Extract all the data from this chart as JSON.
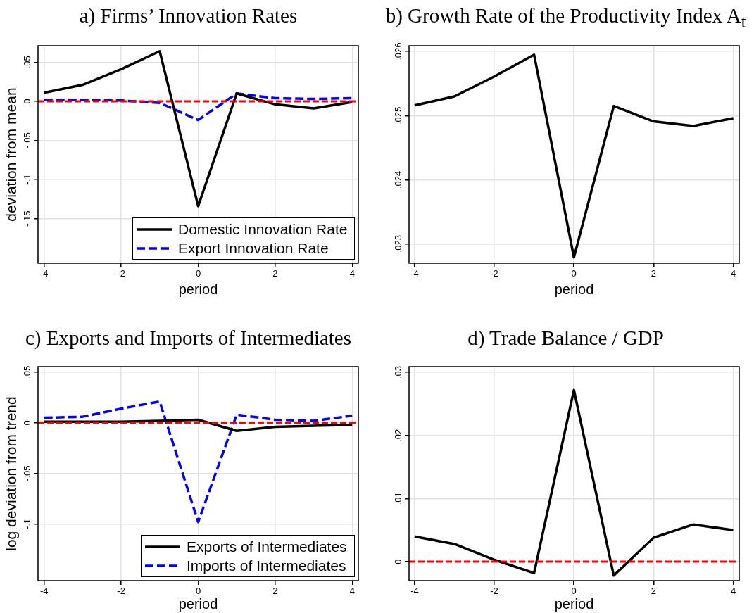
{
  "chart_data": [
    {
      "type": "line",
      "title": "a) Firms’ Innovation Rates",
      "xlabel": "period",
      "ylabel": "deviation from mean",
      "x": [
        -4,
        -3,
        -2,
        -1,
        0,
        1,
        2,
        3,
        4
      ],
      "series": [
        {
          "name": "Domestic Innovation Rate",
          "color": "#000000",
          "line_style": "solid",
          "values": [
            0.011,
            0.021,
            0.041,
            0.064,
            -0.134,
            0.01,
            -0.004,
            -0.009,
            -0.001
          ]
        },
        {
          "name": "Export Innovation Rate",
          "color": "#0000ff",
          "line_style": "dashed",
          "values": [
            0.002,
            0.002,
            0.001,
            -0.002,
            -0.024,
            0.01,
            0.004,
            0.003,
            0.004
          ]
        }
      ],
      "xlim": [
        -4.16,
        4.16
      ],
      "ylim": [
        -0.207,
        0.071
      ],
      "xticks": [
        -4,
        -2,
        0,
        2,
        4
      ],
      "yticks": [
        {
          "value": -0.15,
          "label": "-.15"
        },
        {
          "value": -0.1,
          "label": "-.1"
        },
        {
          "value": -0.05,
          "label": "-.05"
        },
        {
          "value": 0,
          "label": "0"
        },
        {
          "value": 0.05,
          "label": ".05"
        }
      ],
      "grid": true,
      "legend": "bottom right",
      "marker": "none",
      "ref_lines": [
        {
          "axis": "y",
          "value": 0,
          "color": "#ff0000",
          "line_style": "dashed"
        }
      ]
    },
    {
      "type": "line",
      "title": "b) Growth Rate of the Productivity Index A$_{t}$",
      "xlabel": "period",
      "x": [
        -4,
        -3,
        -2,
        -1,
        0,
        1,
        2,
        3,
        4
      ],
      "series": [
        {
          "color": "#000000",
          "line_style": "solid",
          "values": [
            0.02516,
            0.0253,
            0.02561,
            0.02595,
            0.02279,
            0.02515,
            0.02491,
            0.02484,
            0.02496
          ]
        }
      ],
      "xlim": [
        -4.14,
        4.15
      ],
      "ylim": [
        0.0227,
        0.02609
      ],
      "xticks": [
        -4,
        -2,
        0,
        2,
        4
      ],
      "yticks": [
        {
          "value": 0.023,
          "label": ".023"
        },
        {
          "value": 0.024,
          "label": ".024"
        },
        {
          "value": 0.025,
          "label": ".025"
        },
        {
          "value": 0.026,
          "label": ".026"
        }
      ],
      "grid": true,
      "marker": "none"
    },
    {
      "type": "line",
      "title": "c) Exports and Imports of Intermediates",
      "xlabel": "period",
      "ylabel": "log deviation from trend",
      "x": [
        -4,
        -3,
        -2,
        -1,
        0,
        1,
        2,
        3,
        4
      ],
      "series": [
        {
          "name": "Exports of Intermediates",
          "color": "#000000",
          "line_style": "solid",
          "values": [
            0.001,
            0.001,
            0.001,
            0.002,
            0.003,
            -0.008,
            -0.004,
            -0.003,
            -0.002
          ]
        },
        {
          "name": "Imports of Intermediates",
          "color": "#0000ff",
          "line_style": "dashed",
          "values": [
            0.005,
            0.006,
            0.014,
            0.021,
            -0.098,
            0.008,
            0.003,
            0.002,
            0.007
          ]
        }
      ],
      "xlim": [
        -4.16,
        4.16
      ],
      "ylim": [
        -0.156,
        0.0555
      ],
      "xticks": [
        -4,
        -2,
        0,
        2,
        4
      ],
      "yticks": [
        {
          "value": -0.1,
          "label": "-.1"
        },
        {
          "value": -0.05,
          "label": "-.05"
        },
        {
          "value": 0,
          "label": "0"
        },
        {
          "value": 0.05,
          "label": ".05"
        }
      ],
      "grid": true,
      "legend": "bottom right",
      "marker": "none",
      "ref_lines": [
        {
          "axis": "y",
          "value": 0,
          "color": "#ff0000",
          "line_style": "dashed"
        }
      ]
    },
    {
      "type": "line",
      "title": "d) Trade Balance / GDP",
      "xlabel": "period",
      "x": [
        -4,
        -3,
        -2,
        -1,
        0,
        1,
        2,
        3,
        4
      ],
      "series": [
        {
          "color": "#000000",
          "line_style": "solid",
          "values": [
            0.004,
            0.0028,
            0.0003,
            -0.0018,
            0.0272,
            -0.0022,
            0.0038,
            0.0059,
            0.005
          ]
        }
      ],
      "xlim": [
        -4.14,
        4.15
      ],
      "ylim": [
        -0.003,
        0.0309
      ],
      "xticks": [
        -4,
        -2,
        0,
        2,
        4
      ],
      "yticks": [
        {
          "value": 0,
          "label": "0"
        },
        {
          "value": 0.01,
          "label": ".01"
        },
        {
          "value": 0.02,
          "label": ".02"
        },
        {
          "value": 0.03,
          "label": ".03"
        }
      ],
      "grid": true,
      "marker": "none",
      "ref_lines": [
        {
          "axis": "y",
          "value": 0,
          "color": "#ff0000",
          "line_style": "dashed"
        }
      ]
    }
  ]
}
